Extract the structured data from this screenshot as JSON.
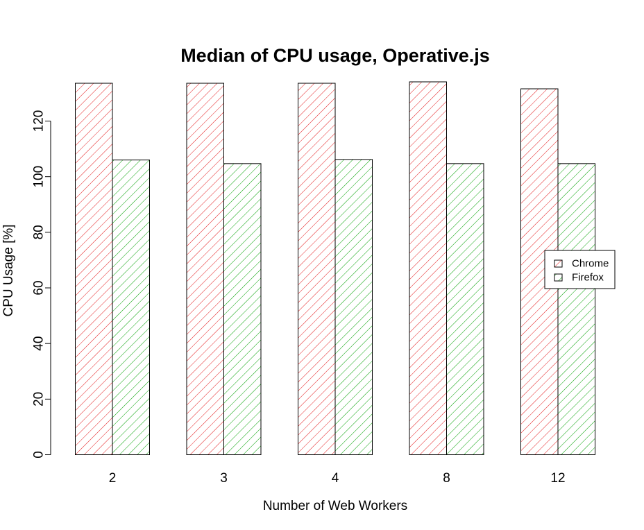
{
  "chart_data": {
    "type": "bar",
    "title": "Median of CPU usage, Operative.js",
    "xlabel": "Number of Web Workers",
    "ylabel": "CPU Usage [%]",
    "categories": [
      "2",
      "3",
      "4",
      "8",
      "12"
    ],
    "series": [
      {
        "name": "Chrome",
        "values": [
          133.6,
          133.6,
          133.6,
          134.1,
          131.6
        ],
        "color": "#e41a1c",
        "hatch": "diagonal"
      },
      {
        "name": "Firefox",
        "values": [
          106.0,
          104.7,
          106.2,
          104.7,
          104.7
        ],
        "color": "#00a000",
        "hatch": "diagonal"
      }
    ],
    "ylim": [
      0,
      134.1
    ],
    "yticks": [
      "0",
      "20",
      "40",
      "60",
      "80",
      "100",
      "120"
    ],
    "grid": false,
    "legend_position": "right"
  }
}
